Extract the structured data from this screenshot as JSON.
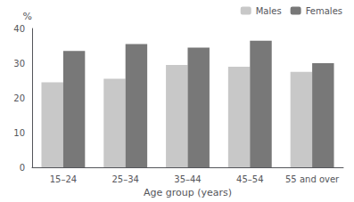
{
  "chart_data": {
    "type": "bar",
    "categories": [
      "15–24",
      "25–34",
      "35–44",
      "45–54",
      "55 and over"
    ],
    "series": [
      {
        "name": "Males",
        "color": "#c8c8c8",
        "values": [
          24.5,
          25.5,
          29.5,
          29.0,
          27.5
        ]
      },
      {
        "name": "Females",
        "color": "#787878",
        "values": [
          33.5,
          35.5,
          34.5,
          36.5,
          30.0
        ]
      }
    ],
    "xlabel": "Age group (years)",
    "ylabel": "%",
    "ylim": [
      0,
      40
    ],
    "yticks": [
      0,
      10,
      20,
      30,
      40
    ],
    "grid": false,
    "legend": "upper right"
  }
}
